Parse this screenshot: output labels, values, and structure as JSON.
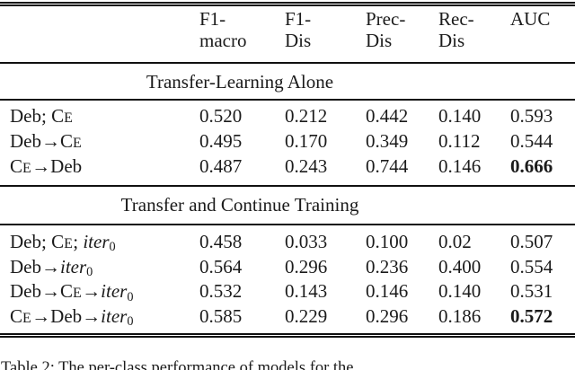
{
  "table": {
    "columns": [
      {
        "line1": "F1-",
        "line2": "macro"
      },
      {
        "line1": "F1-",
        "line2": "Dis"
      },
      {
        "line1": "Prec-",
        "line2": "Dis"
      },
      {
        "line1": "Rec-",
        "line2": "Dis"
      },
      {
        "line1": "AUC",
        "line2": ""
      }
    ],
    "sections": [
      {
        "title": "Transfer-Learning Alone",
        "rows": [
          {
            "label": [
              {
                "style": "plain",
                "text": "Deb; "
              },
              {
                "style": "smallcaps",
                "text": "CE"
              }
            ],
            "values": [
              "0.520",
              "0.212",
              "0.442",
              "0.140",
              "0.593"
            ],
            "bold": []
          },
          {
            "label": [
              {
                "style": "plain",
                "text": "Deb"
              },
              {
                "style": "arrow",
                "text": "→"
              },
              {
                "style": "smallcaps",
                "text": "CE"
              }
            ],
            "values": [
              "0.495",
              "0.170",
              "0.349",
              "0.112",
              "0.544"
            ],
            "bold": []
          },
          {
            "label": [
              {
                "style": "smallcaps",
                "text": "CE"
              },
              {
                "style": "arrow",
                "text": "→"
              },
              {
                "style": "plain",
                "text": "Deb"
              }
            ],
            "values": [
              "0.487",
              "0.243",
              "0.744",
              "0.146",
              "0.666"
            ],
            "bold": [
              4
            ]
          }
        ]
      },
      {
        "title": "Transfer and Continue Training",
        "rows": [
          {
            "label": [
              {
                "style": "plain",
                "text": "Deb; "
              },
              {
                "style": "smallcaps",
                "text": "CE"
              },
              {
                "style": "plain",
                "text": "; "
              },
              {
                "style": "italic",
                "text": "iter"
              },
              {
                "style": "sub",
                "text": "0"
              }
            ],
            "values": [
              "0.458",
              "0.033",
              "0.100",
              "0.02",
              "0.507"
            ],
            "bold": []
          },
          {
            "label": [
              {
                "style": "plain",
                "text": "Deb"
              },
              {
                "style": "arrow",
                "text": "→"
              },
              {
                "style": "italic",
                "text": "iter"
              },
              {
                "style": "sub",
                "text": "0"
              }
            ],
            "values": [
              "0.564",
              "0.296",
              "0.236",
              "0.400",
              "0.554"
            ],
            "bold": []
          },
          {
            "label": [
              {
                "style": "plain",
                "text": "Deb"
              },
              {
                "style": "arrow",
                "text": "→"
              },
              {
                "style": "smallcaps",
                "text": "CE"
              },
              {
                "style": "arrow",
                "text": "→"
              },
              {
                "style": "italic",
                "text": "iter"
              },
              {
                "style": "sub",
                "text": "0"
              }
            ],
            "values": [
              "0.532",
              "0.143",
              "0.146",
              "0.140",
              "0.531"
            ],
            "bold": []
          },
          {
            "label": [
              {
                "style": "smallcaps",
                "text": "CE"
              },
              {
                "style": "arrow",
                "text": "→"
              },
              {
                "style": "plain",
                "text": "Deb"
              },
              {
                "style": "arrow",
                "text": "→"
              },
              {
                "style": "italic",
                "text": "iter"
              },
              {
                "style": "sub",
                "text": "0"
              }
            ],
            "values": [
              "0.585",
              "0.229",
              "0.296",
              "0.186",
              "0.572"
            ],
            "bold": [
              4
            ]
          }
        ]
      }
    ]
  },
  "caption": "Table 2: The per-class performance of models for the",
  "colors": {
    "text": "#1b1b1b",
    "rule": "#101010",
    "background": "#ffffff"
  }
}
